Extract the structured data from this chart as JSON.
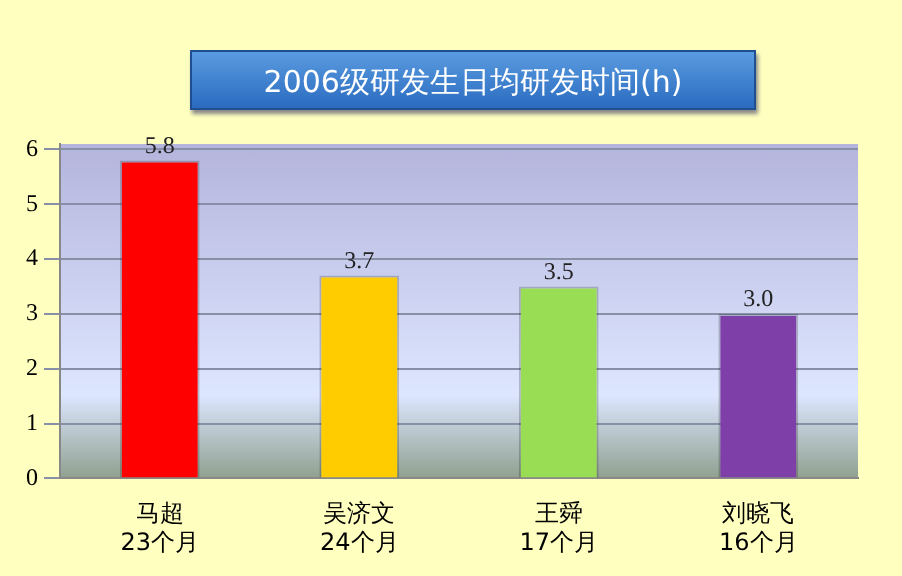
{
  "chart_data": {
    "type": "bar",
    "title": "2006级研发生日均研发时间(h)",
    "categories": [
      "马超\n23个月",
      "吴济文\n24个月",
      "王舜\n17个月",
      "刘晓飞\n16个月"
    ],
    "values": [
      5.8,
      3.7,
      3.5,
      3.0
    ],
    "colors": [
      "#ff0000",
      "#ffcc00",
      "#99dd55",
      "#7f3fa8"
    ],
    "value_labels": [
      "5.8",
      "3.7",
      "3.5",
      "3.0"
    ],
    "ylim": [
      0,
      6.1
    ],
    "yticks": [
      0,
      1,
      2,
      3,
      4,
      5,
      6
    ],
    "grid": "y"
  }
}
